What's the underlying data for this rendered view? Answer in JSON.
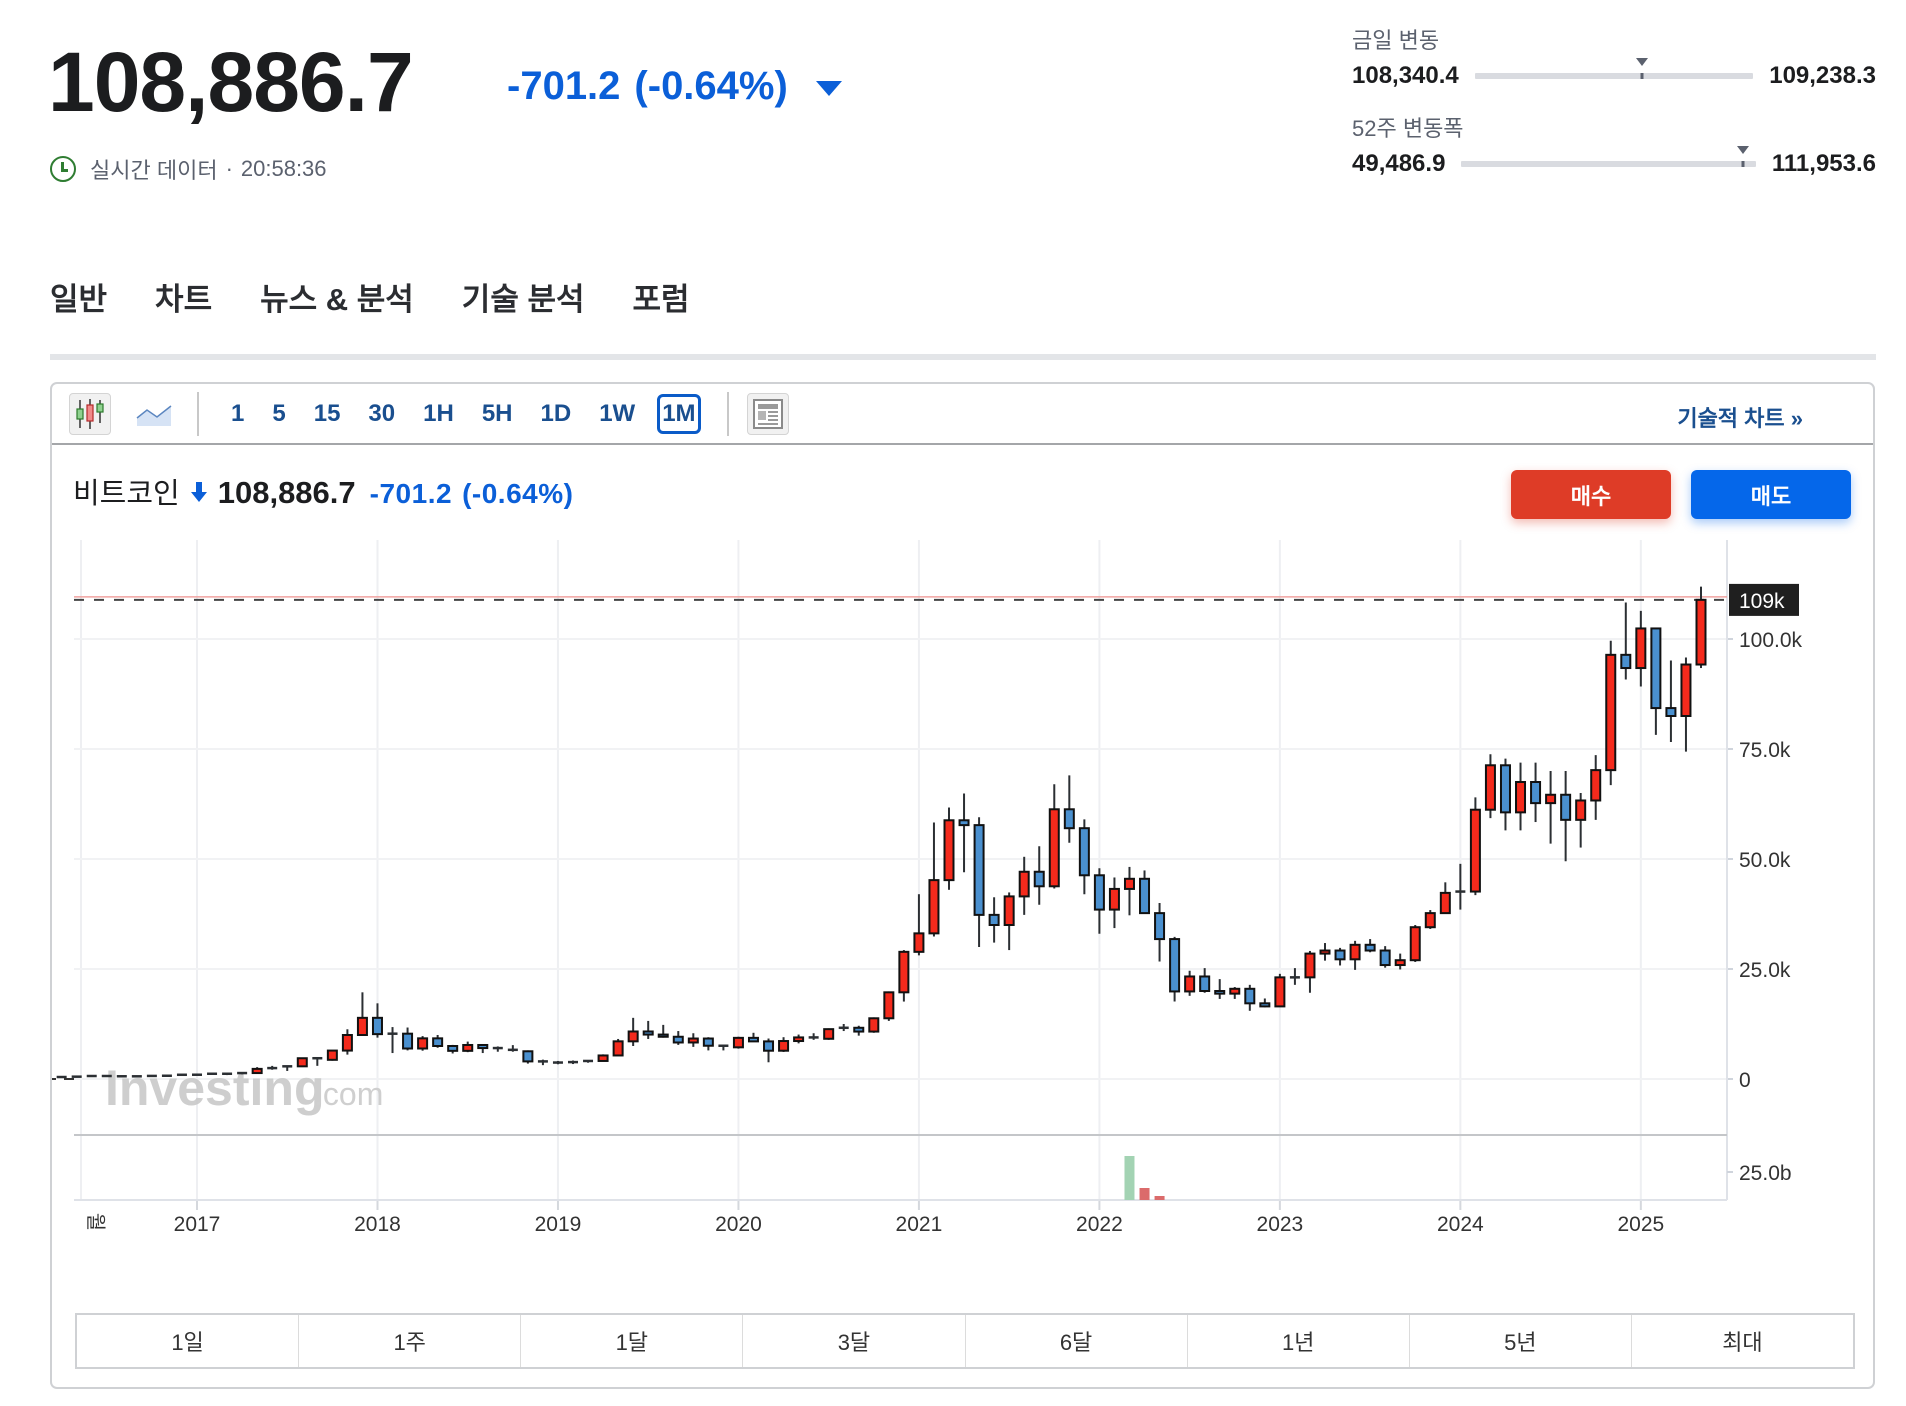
{
  "header": {
    "price": "108,886.7",
    "change": "-701.2",
    "change_pct": "(-0.64%)",
    "direction": "down",
    "realtime_label": "실시간 데이터",
    "separator": "·",
    "time": "20:58:36"
  },
  "ranges": {
    "day": {
      "label": "금일 변동",
      "low": "108,340.4",
      "high": "109,238.3",
      "position_pct": 60
    },
    "week52": {
      "label": "52주 변동폭",
      "low": "49,486.9",
      "high": "111,953.6",
      "position_pct": 95
    }
  },
  "tabs": [
    {
      "label": "일반"
    },
    {
      "label": "차트"
    },
    {
      "label": "뉴스 & 분석"
    },
    {
      "label": "기술 분석"
    },
    {
      "label": "포럼"
    }
  ],
  "toolbar": {
    "chart_types": [
      "candlestick-icon",
      "area-chart-icon"
    ],
    "timeframes": [
      "1",
      "5",
      "15",
      "30",
      "1H",
      "5H",
      "1D",
      "1W",
      "1M"
    ],
    "active_timeframe": "1M",
    "layout_icon": "news-layout-icon",
    "tech_chart_link": "기술적 차트 »"
  },
  "instrument": {
    "name": "비트코인",
    "arrow": "🡇",
    "price": "108,886.7",
    "change": "-701.2",
    "change_pct": "(-0.64%)"
  },
  "actions": {
    "buy": "매수",
    "sell": "매도"
  },
  "colors": {
    "up": "#f42a1c",
    "down": "#4a90cf",
    "accent_blue": "#0b5fd8",
    "buy_button": "#de3c27",
    "sell_button": "#0567ea",
    "vol_up": "#a3d3b3",
    "vol_down": "#db6b6b"
  },
  "watermark": {
    "brand": "Investing",
    "suffix": ".com"
  },
  "periods": [
    "1일",
    "1주",
    "1달",
    "3달",
    "6달",
    "1년",
    "5년",
    "최대"
  ],
  "chart_data": {
    "type": "candlestick",
    "title": "비트코인 1M",
    "xlabel": "",
    "ylabel": "",
    "x_first_label": "월",
    "x_ticks": [
      "2017",
      "2018",
      "2019",
      "2020",
      "2021",
      "2022",
      "2023",
      "2024",
      "2025"
    ],
    "y_ticks": [
      "0",
      "25.0k",
      "50.0k",
      "75.0k",
      "100.0k"
    ],
    "y_tick_values": [
      0,
      25000,
      50000,
      75000,
      100000
    ],
    "ylim": [
      0,
      112000
    ],
    "current_price_label": "109k",
    "current_price": 108886.7,
    "volume_axis_label": "25.0b",
    "start_month": "2016-02",
    "ohlc": [
      [
        370,
        440,
        360,
        430
      ],
      [
        430,
        460,
        410,
        420
      ],
      [
        420,
        460,
        410,
        450
      ],
      [
        450,
        530,
        440,
        530
      ],
      [
        530,
        770,
        520,
        680
      ],
      [
        680,
        690,
        570,
        620
      ],
      [
        620,
        630,
        540,
        570
      ],
      [
        570,
        610,
        570,
        610
      ],
      [
        610,
        720,
        610,
        700
      ],
      [
        700,
        750,
        700,
        740
      ],
      [
        740,
        980,
        740,
        960
      ],
      [
        960,
        1150,
        770,
        970
      ],
      [
        970,
        1200,
        920,
        1190
      ],
      [
        1190,
        1280,
        890,
        1070
      ],
      [
        1070,
        1370,
        1070,
        1350
      ],
      [
        1350,
        2700,
        1350,
        2300
      ],
      [
        2300,
        2980,
        2100,
        2480
      ],
      [
        2480,
        2920,
        1830,
        2880
      ],
      [
        2880,
        4750,
        2720,
        4720
      ],
      [
        4720,
        4990,
        2990,
        4360
      ],
      [
        4360,
        6470,
        4160,
        6460
      ],
      [
        6460,
        11300,
        5540,
        10000
      ],
      [
        10000,
        19700,
        9800,
        13900
      ],
      [
        13900,
        17200,
        9400,
        10200
      ],
      [
        10200,
        11800,
        5900,
        10300
      ],
      [
        10300,
        11700,
        6500,
        6930
      ],
      [
        6930,
        9750,
        6430,
        9240
      ],
      [
        9240,
        10000,
        7100,
        7500
      ],
      [
        7500,
        7750,
        5800,
        6400
      ],
      [
        6400,
        8500,
        6100,
        7730
      ],
      [
        7730,
        7760,
        5900,
        7030
      ],
      [
        7030,
        7400,
        6200,
        6630
      ],
      [
        6630,
        7700,
        6200,
        6300
      ],
      [
        6300,
        6500,
        3500,
        4000
      ],
      [
        4000,
        4400,
        3150,
        3740
      ],
      [
        3740,
        4100,
        3350,
        3450
      ],
      [
        3450,
        4200,
        3400,
        3840
      ],
      [
        3840,
        4100,
        3700,
        4100
      ],
      [
        4100,
        5600,
        4090,
        5350
      ],
      [
        5350,
        9100,
        5300,
        8560
      ],
      [
        8560,
        13900,
        7500,
        10800
      ],
      [
        10800,
        13200,
        9100,
        10100
      ],
      [
        10100,
        12300,
        9400,
        9600
      ],
      [
        9600,
        10900,
        7750,
        8300
      ],
      [
        8300,
        10400,
        7300,
        9200
      ],
      [
        9200,
        9500,
        6500,
        7560
      ],
      [
        7560,
        7700,
        6500,
        7200
      ],
      [
        7200,
        9600,
        6900,
        9350
      ],
      [
        9350,
        10500,
        8500,
        8550
      ],
      [
        8550,
        9200,
        3800,
        6430
      ],
      [
        6430,
        9500,
        6150,
        8630
      ],
      [
        8630,
        10100,
        8100,
        9450
      ],
      [
        9450,
        10400,
        8900,
        9140
      ],
      [
        9140,
        11500,
        8900,
        11330
      ],
      [
        11330,
        12500,
        10900,
        11640
      ],
      [
        11640,
        12100,
        9850,
        10780
      ],
      [
        10780,
        14000,
        10500,
        13800
      ],
      [
        13800,
        19900,
        13200,
        19700
      ],
      [
        19700,
        29300,
        17600,
        28900
      ],
      [
        28900,
        42000,
        28100,
        33100
      ],
      [
        33100,
        58300,
        32400,
        45200
      ],
      [
        45200,
        61700,
        43000,
        58800
      ],
      [
        58800,
        64900,
        47000,
        57700
      ],
      [
        57700,
        59500,
        30000,
        37300
      ],
      [
        37300,
        41300,
        31000,
        35000
      ],
      [
        35000,
        42400,
        29300,
        41500
      ],
      [
        41500,
        50500,
        37300,
        47100
      ],
      [
        47100,
        52900,
        39600,
        43800
      ],
      [
        43800,
        67000,
        43300,
        61300
      ],
      [
        61300,
        69000,
        53700,
        57000
      ],
      [
        57000,
        59000,
        42000,
        46300
      ],
      [
        46300,
        47900,
        33000,
        38500
      ],
      [
        38500,
        45800,
        34300,
        43200
      ],
      [
        43200,
        48200,
        37200,
        45500
      ],
      [
        45500,
        47400,
        37700,
        37700
      ],
      [
        37700,
        40000,
        26700,
        31800
      ],
      [
        31800,
        32300,
        17600,
        19900
      ],
      [
        19900,
        24600,
        18900,
        23300
      ],
      [
        23300,
        25200,
        19600,
        20000
      ],
      [
        20000,
        22700,
        18200,
        19400
      ],
      [
        19400,
        20900,
        18200,
        20500
      ],
      [
        20500,
        21400,
        15500,
        17200
      ],
      [
        17200,
        18300,
        16300,
        16500
      ],
      [
        16500,
        23900,
        16500,
        23100
      ],
      [
        23100,
        25200,
        21400,
        23100
      ],
      [
        23100,
        29100,
        19600,
        28500
      ],
      [
        28500,
        30900,
        26900,
        29200
      ],
      [
        29200,
        29800,
        25800,
        27200
      ],
      [
        27200,
        31400,
        24800,
        30500
      ],
      [
        30500,
        31800,
        28800,
        29200
      ],
      [
        29200,
        30200,
        25300,
        25900
      ],
      [
        25900,
        28500,
        24900,
        27000
      ],
      [
        27000,
        35000,
        26600,
        34500
      ],
      [
        34500,
        38400,
        34100,
        37700
      ],
      [
        37700,
        44700,
        37600,
        42300
      ],
      [
        42300,
        48900,
        38500,
        42600
      ],
      [
        42600,
        64000,
        41800,
        61200
      ],
      [
        61200,
        73800,
        59300,
        71300
      ],
      [
        71300,
        72800,
        56500,
        60600
      ],
      [
        60600,
        71900,
        56500,
        67500
      ],
      [
        67500,
        71900,
        58400,
        62700
      ],
      [
        62700,
        70000,
        53500,
        64600
      ],
      [
        64600,
        70000,
        49500,
        58900
      ],
      [
        58900,
        65000,
        52600,
        63300
      ],
      [
        63300,
        73600,
        58900,
        70200
      ],
      [
        70200,
        99600,
        66800,
        96400
      ],
      [
        96400,
        108300,
        90800,
        93400
      ],
      [
        93400,
        106400,
        89200,
        102400
      ],
      [
        102400,
        102500,
        78200,
        84300
      ],
      [
        84300,
        95100,
        76600,
        82500
      ],
      [
        82500,
        95800,
        74400,
        94200
      ],
      [
        94200,
        111900,
        93400,
        108900
      ]
    ],
    "volume_bars": [
      {
        "month": "2022-03",
        "value_b": 22,
        "dir": "up"
      },
      {
        "month": "2022-04",
        "value_b": 6,
        "dir": "down"
      },
      {
        "month": "2022-05",
        "value_b": 2,
        "dir": "down"
      }
    ]
  }
}
